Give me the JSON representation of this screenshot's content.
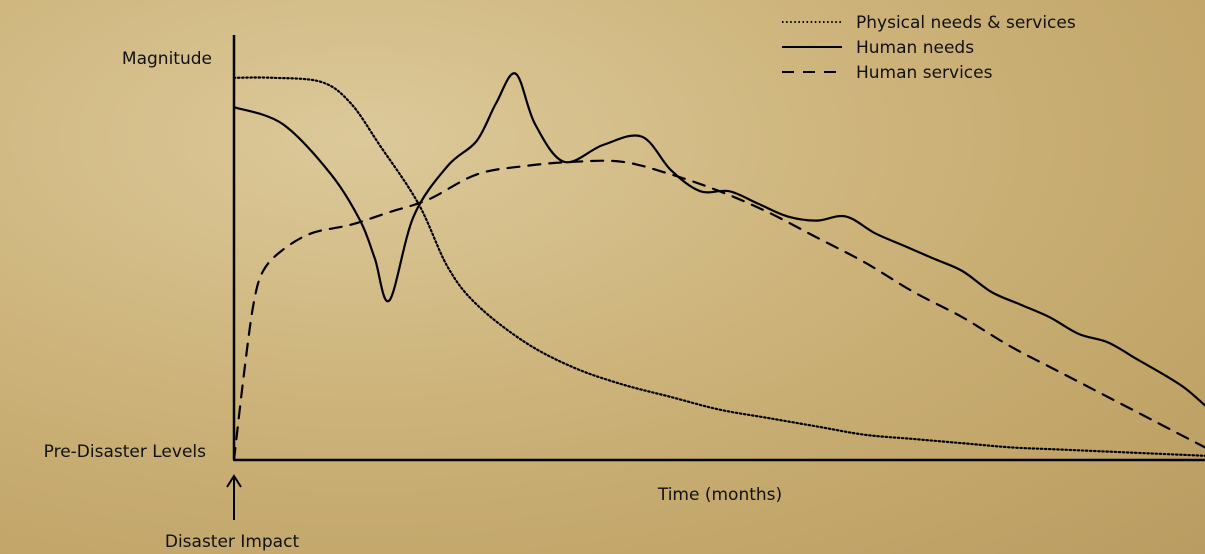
{
  "chart_data": {
    "type": "line",
    "ylabel": "Magnitude",
    "baseline_label": "Pre-Disaster Levels",
    "xlabel": "Time (months)",
    "event_label": "Disaster Impact",
    "axis_numbers_shown": false,
    "legend_position": "top-right",
    "grid": false,
    "xlim": [
      0,
      100
    ],
    "ylim": [
      0,
      100
    ],
    "series": [
      {
        "name": "Physical needs & services",
        "style": "dotted",
        "color": "#000000",
        "x": [
          0,
          4,
          9,
          12,
          15,
          19,
          22,
          25,
          30,
          35,
          40,
          45,
          50,
          55,
          60,
          65,
          70,
          75,
          80,
          85,
          90,
          95,
          100
        ],
        "y": [
          91,
          91,
          90,
          85,
          75,
          61,
          46,
          37,
          28,
          22,
          18,
          15,
          12,
          10,
          8,
          6,
          5,
          4,
          3,
          2.5,
          2,
          1.5,
          1
        ]
      },
      {
        "name": "Human needs",
        "style": "solid",
        "color": "#000000",
        "x": [
          0,
          5,
          10,
          13,
          14.5,
          16,
          18.5,
          22,
          25,
          27,
          29,
          31,
          34,
          38,
          42,
          45,
          48,
          51,
          54,
          57,
          60,
          63,
          66,
          69,
          72,
          75,
          78,
          81,
          84,
          87,
          90,
          93,
          96,
          98,
          100
        ],
        "y": [
          84,
          80,
          68,
          57,
          48,
          38,
          58,
          70,
          76,
          85,
          92,
          80,
          71,
          75,
          77,
          69,
          64,
          64,
          61,
          58,
          57,
          58,
          54,
          51,
          48,
          45,
          40,
          37,
          34,
          30,
          28,
          24,
          20,
          17,
          13
        ]
      },
      {
        "name": "Human services",
        "style": "dashed",
        "color": "#000000",
        "x": [
          0,
          1,
          2,
          3,
          5,
          8,
          12,
          16,
          20,
          25,
          30,
          35,
          40,
          45,
          50,
          55,
          60,
          65,
          70,
          75,
          80,
          85,
          90,
          95,
          100
        ],
        "y": [
          0,
          20,
          37,
          45,
          50,
          54,
          56,
          59,
          62,
          68,
          70,
          71,
          71,
          68,
          64,
          59,
          53,
          47,
          40,
          34,
          27,
          21,
          15,
          9,
          3
        ]
      }
    ]
  }
}
